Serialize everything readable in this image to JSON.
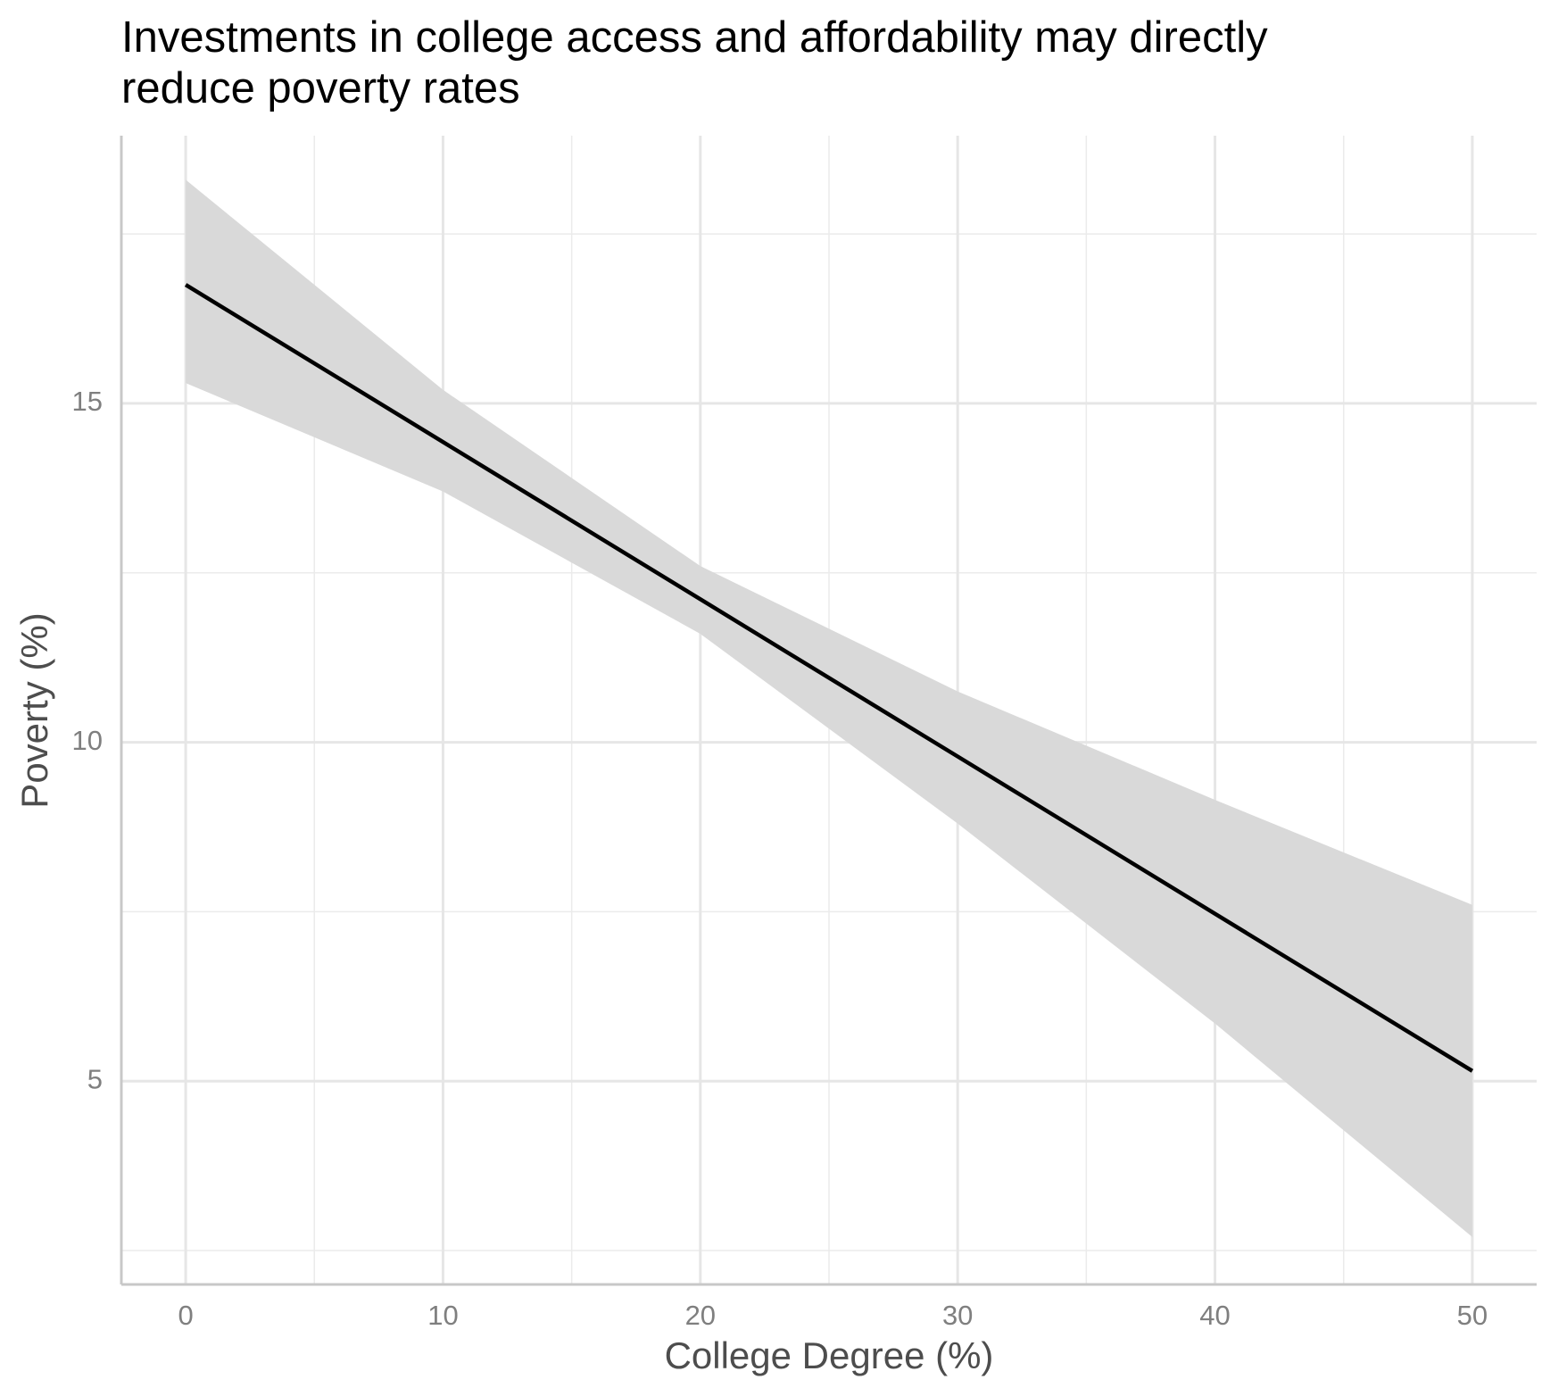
{
  "chart_data": {
    "type": "line",
    "title": [
      "Investments in college access and affordability may directly",
      "reduce poverty rates"
    ],
    "x_label": "College Degree (%)",
    "y_label": "Poverty (%)",
    "x": [
      0,
      10,
      20,
      30,
      40,
      50
    ],
    "series": [
      {
        "values": [
          16.75,
          14.43,
          12.11,
          9.79,
          7.47,
          5.15
        ],
        "color": "#000000",
        "lower": [
          15.3,
          13.7,
          11.6,
          8.8,
          5.85,
          2.7
        ],
        "upper": [
          18.3,
          15.2,
          12.6,
          10.75,
          9.15,
          7.6
        ],
        "band_color": "#d9d9d9"
      }
    ],
    "xlim": [
      -2.5,
      52.5
    ],
    "ylim": [
      2.0,
      18.95
    ],
    "xticks": [
      0,
      10,
      20,
      30,
      40,
      50
    ],
    "yticks": [
      5,
      10,
      15
    ],
    "x_minor_ticks": [
      5,
      15,
      25,
      35,
      45
    ],
    "y_minor_ticks": [
      2.5,
      7.5,
      12.5,
      17.5
    ],
    "grid": true
  }
}
